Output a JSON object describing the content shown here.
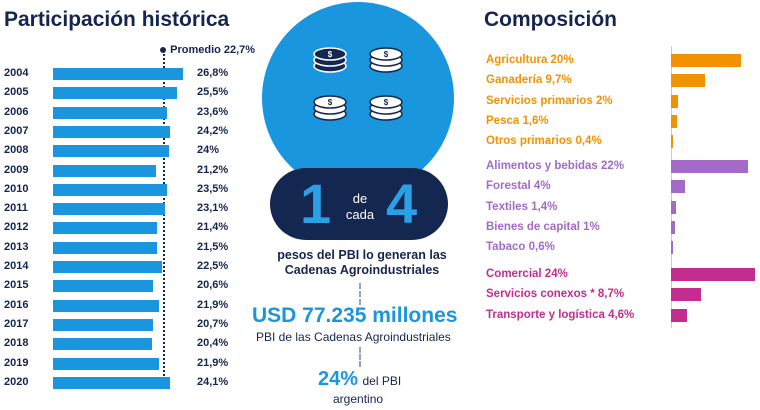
{
  "left": {
    "title": "Participación histórica",
    "promedio_label": "Promedio 22,7%"
  },
  "center": {
    "big_left": "1",
    "de_label": "de",
    "cada_label": "cada",
    "big_right": "4",
    "line1": "pesos del PBI lo generan las",
    "line2": "Cadenas Agroindustriales",
    "usd_amount": "USD 77.235 millones",
    "usd_sub": "PBI de las Cadenas Agroindustriales",
    "pct_value": "24%",
    "pct_suffix": "del PBI",
    "pct_line2": "argentino",
    "icons": [
      "coin-stack-icon",
      "coin-stack-icon",
      "coin-stack-icon",
      "coin-stack-icon"
    ]
  },
  "right": {
    "title": "Composición"
  },
  "colors": {
    "blue": "#1a96de",
    "navy": "#142750",
    "orange": "#f39200",
    "purple": "#a36ac8",
    "magenta": "#c32d8f"
  },
  "chart_data": [
    {
      "type": "bar",
      "orientation": "horizontal",
      "title": "Participación histórica",
      "categories": [
        "2004",
        "2005",
        "2006",
        "2007",
        "2008",
        "2009",
        "2010",
        "2011",
        "2012",
        "2013",
        "2014",
        "2015",
        "2016",
        "2017",
        "2018",
        "2019",
        "2020"
      ],
      "values": [
        26.8,
        25.5,
        23.6,
        24.2,
        24,
        21.2,
        23.5,
        23.1,
        21.4,
        21.5,
        22.5,
        20.6,
        21.9,
        20.7,
        20.4,
        21.9,
        24.1
      ],
      "labels": [
        "26,8%",
        "25,5%",
        "23,6%",
        "24,2%",
        "24%",
        "21,2%",
        "23,5%",
        "23,1%",
        "21,4%",
        "21,5%",
        "22,5%",
        "20,6%",
        "21,9%",
        "20,7%",
        "20,4%",
        "21,9%",
        "24,1%"
      ],
      "reference_line": {
        "label": "Promedio 22,7%",
        "value": 22.7
      },
      "grid": false
    },
    {
      "type": "bar",
      "orientation": "horizontal",
      "title": "Composición",
      "groups": [
        {
          "color": "#f39200",
          "items": [
            {
              "label": "Agricultura 20%",
              "value": 20
            },
            {
              "label": "Ganadería 9,7%",
              "value": 9.7
            },
            {
              "label": "Servicios primarios 2%",
              "value": 2
            },
            {
              "label": "Pesca 1,6%",
              "value": 1.6
            },
            {
              "label": "Otros primarios 0,4%",
              "value": 0.4
            }
          ]
        },
        {
          "color": "#a36ac8",
          "items": [
            {
              "label": "Alimentos y bebidas 22%",
              "value": 22
            },
            {
              "label": "Forestal 4%",
              "value": 4
            },
            {
              "label": "Textiles 1,4%",
              "value": 1.4
            },
            {
              "label": "Bienes de capital 1%",
              "value": 1
            },
            {
              "label": "Tabaco 0,6%",
              "value": 0.6
            }
          ]
        },
        {
          "color": "#c32d8f",
          "items": [
            {
              "label": "Comercial 24%",
              "value": 24
            },
            {
              "label": "Servicios conexos * 8,7%",
              "value": 8.7
            },
            {
              "label": "Transporte y logística 4,6%",
              "value": 4.6
            }
          ]
        }
      ],
      "grid": false
    }
  ]
}
